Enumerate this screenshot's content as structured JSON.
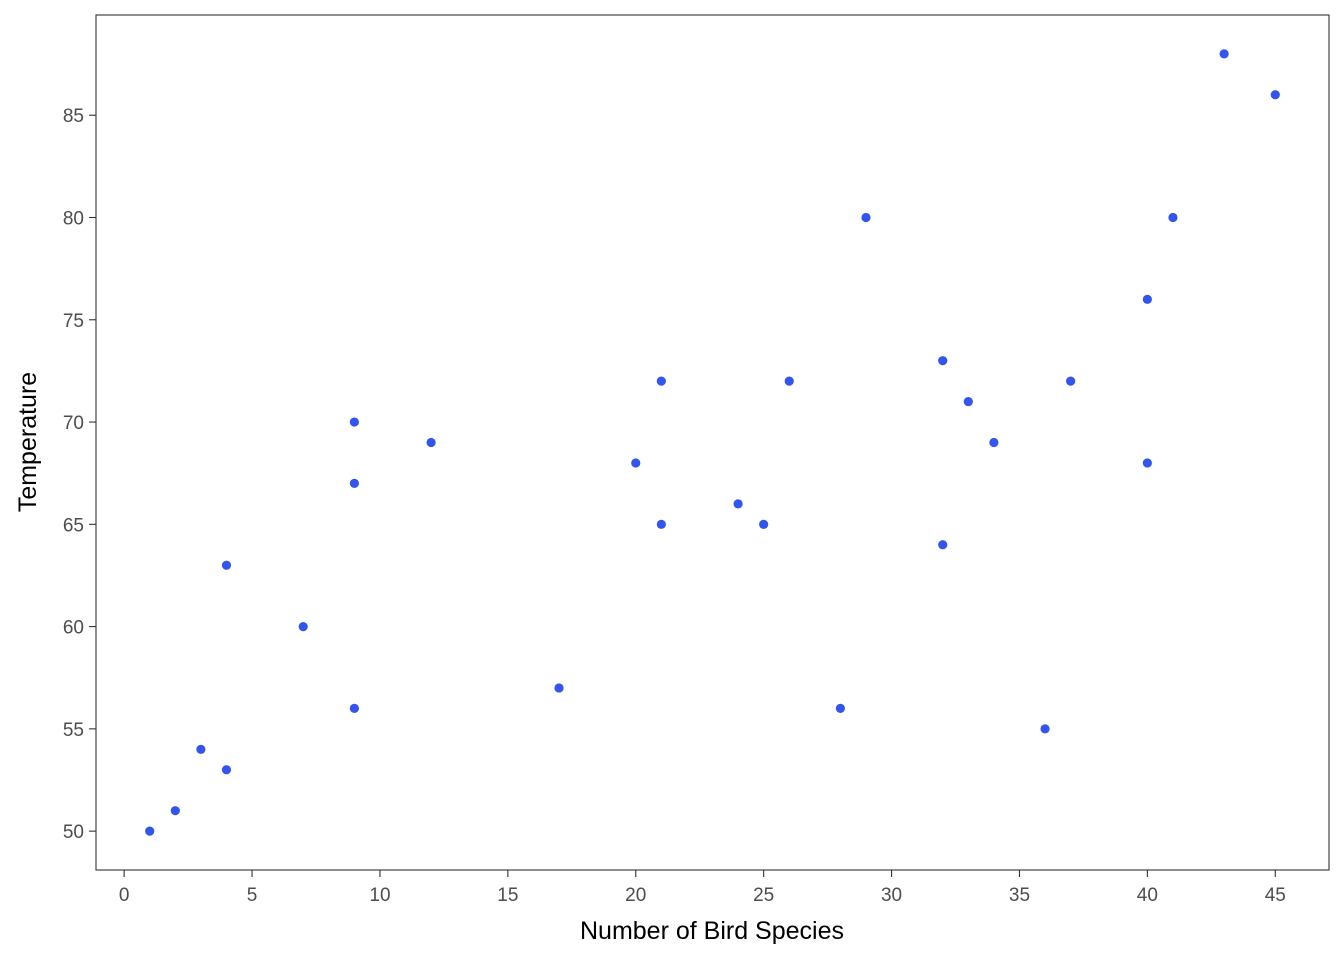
{
  "chart_data": {
    "type": "scatter",
    "title": "",
    "xlabel": "Number of Bird Species",
    "ylabel": "Temperature",
    "xlim": [
      -1.1,
      47.1
    ],
    "ylim": [
      48.1,
      89.9
    ],
    "x_ticks": [
      0,
      5,
      10,
      15,
      20,
      25,
      30,
      35,
      40,
      45
    ],
    "y_ticks": [
      50,
      55,
      60,
      65,
      70,
      75,
      80,
      85
    ],
    "grid": false,
    "legend": "none",
    "point_color": "#3355ee",
    "series": [
      {
        "points": [
          {
            "x": 1,
            "y": 50
          },
          {
            "x": 2,
            "y": 51
          },
          {
            "x": 3,
            "y": 54
          },
          {
            "x": 4,
            "y": 53
          },
          {
            "x": 4,
            "y": 63
          },
          {
            "x": 7,
            "y": 60
          },
          {
            "x": 9,
            "y": 56
          },
          {
            "x": 9,
            "y": 67
          },
          {
            "x": 9,
            "y": 70
          },
          {
            "x": 12,
            "y": 69
          },
          {
            "x": 17,
            "y": 57
          },
          {
            "x": 20,
            "y": 68
          },
          {
            "x": 21,
            "y": 65
          },
          {
            "x": 21,
            "y": 72
          },
          {
            "x": 24,
            "y": 66
          },
          {
            "x": 25,
            "y": 65
          },
          {
            "x": 26,
            "y": 72
          },
          {
            "x": 28,
            "y": 56
          },
          {
            "x": 29,
            "y": 80
          },
          {
            "x": 32,
            "y": 64
          },
          {
            "x": 32,
            "y": 73
          },
          {
            "x": 33,
            "y": 71
          },
          {
            "x": 34,
            "y": 69
          },
          {
            "x": 36,
            "y": 55
          },
          {
            "x": 37,
            "y": 72
          },
          {
            "x": 40,
            "y": 68
          },
          {
            "x": 40,
            "y": 76
          },
          {
            "x": 41,
            "y": 80
          },
          {
            "x": 43,
            "y": 88
          },
          {
            "x": 45,
            "y": 86
          }
        ]
      }
    ]
  }
}
